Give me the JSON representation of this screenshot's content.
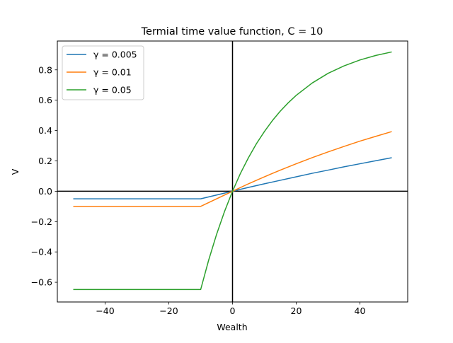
{
  "chart_data": {
    "type": "line",
    "title": "Termial time value function, C = 10",
    "xlabel": "Wealth",
    "ylabel": "V",
    "xlim": [
      -55,
      55
    ],
    "ylim": [
      -0.73,
      0.99
    ],
    "xticks": [
      -40,
      -20,
      0,
      20,
      40
    ],
    "xtick_labels": [
      "−40",
      "−20",
      "0",
      "20",
      "40"
    ],
    "yticks": [
      -0.6,
      -0.4,
      -0.2,
      0.0,
      0.2,
      0.4,
      0.6,
      0.8
    ],
    "ytick_labels": [
      "−0.6",
      "−0.4",
      "−0.2",
      "0.0",
      "0.2",
      "0.4",
      "0.6",
      "0.8"
    ],
    "grid": false,
    "legend_position": "top-left",
    "reference_lines": {
      "x": 0,
      "y": 0,
      "color": "#000000"
    },
    "series": [
      {
        "name": "γ = 0.005",
        "color": "#1f77b4",
        "x": [
          -50,
          -10,
          0,
          5,
          10,
          15,
          20,
          25,
          30,
          35,
          40,
          45,
          50
        ],
        "y": [
          -0.05,
          -0.05,
          0.0,
          0.025,
          0.049,
          0.072,
          0.095,
          0.118,
          0.139,
          0.161,
          0.181,
          0.201,
          0.221
        ]
      },
      {
        "name": "γ = 0.01",
        "color": "#ff7f0e",
        "x": [
          -50,
          -10,
          0,
          5,
          10,
          15,
          20,
          25,
          30,
          35,
          40,
          45,
          50
        ],
        "y": [
          -0.1,
          -0.1,
          0.0,
          0.049,
          0.095,
          0.139,
          0.181,
          0.221,
          0.259,
          0.295,
          0.33,
          0.362,
          0.393
        ]
      },
      {
        "name": "γ = 0.05",
        "color": "#2ca02c",
        "x": [
          -50,
          -10,
          -7.5,
          -5,
          -2.5,
          0,
          2.5,
          5,
          7.5,
          10,
          12.5,
          15,
          17.5,
          20,
          25,
          30,
          35,
          40,
          45,
          50
        ],
        "y": [
          -0.648,
          -0.648,
          -0.455,
          -0.284,
          -0.133,
          0.0,
          0.118,
          0.221,
          0.313,
          0.393,
          0.465,
          0.528,
          0.583,
          0.632,
          0.713,
          0.777,
          0.826,
          0.865,
          0.895,
          0.918
        ]
      }
    ]
  }
}
